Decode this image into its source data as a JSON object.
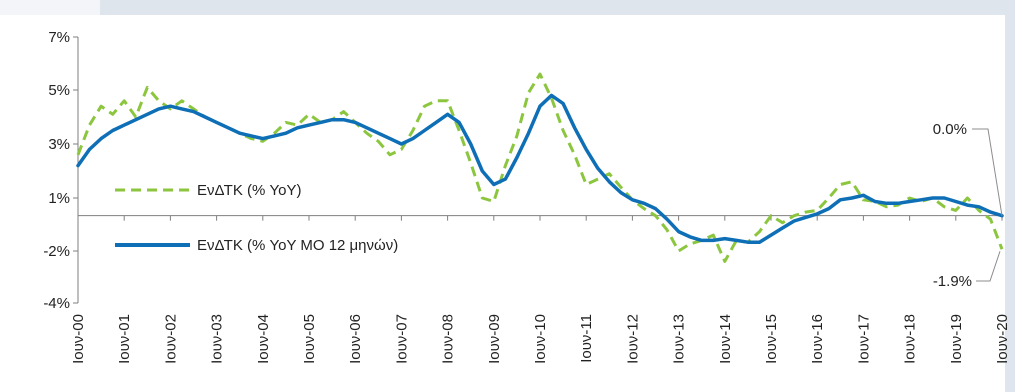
{
  "chart_data": {
    "type": "line",
    "title": "",
    "xlabel": "",
    "ylabel": "",
    "ylim": [
      -4,
      7
    ],
    "yticks": [
      7,
      5,
      3,
      1,
      -2,
      -4
    ],
    "ytick_labels": [
      "7%",
      "5%",
      "3%",
      "1%",
      "-2%",
      "-4%"
    ],
    "baseline": 0,
    "x_range": [
      2000.5,
      2020.5
    ],
    "x_ticks": [
      {
        "x": 2000.5,
        "label": "Ιουν-00"
      },
      {
        "x": 2001.5,
        "label": "Ιουν-01"
      },
      {
        "x": 2002.5,
        "label": "Ιουν-02"
      },
      {
        "x": 2003.5,
        "label": "Ιουν-03"
      },
      {
        "x": 2004.5,
        "label": "Ιουν-04"
      },
      {
        "x": 2005.5,
        "label": "Ιουν-05"
      },
      {
        "x": 2006.5,
        "label": "Ιουν-06"
      },
      {
        "x": 2007.5,
        "label": "Ιουν-07"
      },
      {
        "x": 2008.5,
        "label": "Ιουν-08"
      },
      {
        "x": 2009.5,
        "label": "Ιουν-09"
      },
      {
        "x": 2010.5,
        "label": "Ιουν-10"
      },
      {
        "x": 2011.5,
        "label": "Ιουν-11"
      },
      {
        "x": 2012.5,
        "label": "Ιουν-12"
      },
      {
        "x": 2013.5,
        "label": "Ιουν-13"
      },
      {
        "x": 2014.5,
        "label": "Ιουν-14"
      },
      {
        "x": 2015.5,
        "label": "Ιουν-15"
      },
      {
        "x": 2016.5,
        "label": "Ιουν-16"
      },
      {
        "x": 2017.5,
        "label": "Ιουν-17"
      },
      {
        "x": 2018.5,
        "label": "Ιουν-18"
      },
      {
        "x": 2019.5,
        "label": "Ιουν-19"
      },
      {
        "x": 2020.5,
        "label": "Ιουν-20"
      }
    ],
    "grid": false,
    "legend_position": "left",
    "series": [
      {
        "name": "ΕνΔΤΚ (% YoY)",
        "color": "#8cc63f",
        "style": "dashed",
        "points": [
          [
            2000.5,
            2.6
          ],
          [
            2000.75,
            3.7
          ],
          [
            2001.0,
            4.4
          ],
          [
            2001.25,
            4.1
          ],
          [
            2001.5,
            4.6
          ],
          [
            2001.75,
            4.0
          ],
          [
            2002.0,
            5.1
          ],
          [
            2002.25,
            4.6
          ],
          [
            2002.5,
            4.3
          ],
          [
            2002.75,
            4.6
          ],
          [
            2003.0,
            4.3
          ],
          [
            2003.25,
            4.0
          ],
          [
            2003.5,
            3.8
          ],
          [
            2003.75,
            3.6
          ],
          [
            2004.0,
            3.4
          ],
          [
            2004.25,
            3.2
          ],
          [
            2004.5,
            3.1
          ],
          [
            2004.75,
            3.4
          ],
          [
            2005.0,
            3.8
          ],
          [
            2005.25,
            3.7
          ],
          [
            2005.5,
            4.1
          ],
          [
            2005.75,
            3.8
          ],
          [
            2006.0,
            3.9
          ],
          [
            2006.25,
            4.2
          ],
          [
            2006.5,
            3.8
          ],
          [
            2006.75,
            3.4
          ],
          [
            2007.0,
            3.1
          ],
          [
            2007.25,
            2.6
          ],
          [
            2007.5,
            2.8
          ],
          [
            2007.75,
            3.5
          ],
          [
            2008.0,
            4.4
          ],
          [
            2008.25,
            4.6
          ],
          [
            2008.5,
            4.6
          ],
          [
            2008.75,
            3.5
          ],
          [
            2009.0,
            2.3
          ],
          [
            2009.25,
            1.0
          ],
          [
            2009.5,
            0.8
          ],
          [
            2009.75,
            2.2
          ],
          [
            2010.0,
            3.3
          ],
          [
            2010.25,
            4.9
          ],
          [
            2010.5,
            5.6
          ],
          [
            2010.75,
            4.7
          ],
          [
            2011.0,
            3.5
          ],
          [
            2011.25,
            2.6
          ],
          [
            2011.5,
            1.5
          ],
          [
            2011.75,
            1.7
          ],
          [
            2012.0,
            1.9
          ],
          [
            2012.25,
            1.4
          ],
          [
            2012.5,
            0.9
          ],
          [
            2012.75,
            0.4
          ],
          [
            2013.0,
            0.0
          ],
          [
            2013.25,
            -0.8
          ],
          [
            2013.5,
            -2.0
          ],
          [
            2013.75,
            -1.6
          ],
          [
            2014.0,
            -1.4
          ],
          [
            2014.25,
            -1.1
          ],
          [
            2014.5,
            -2.4
          ],
          [
            2014.75,
            -1.4
          ],
          [
            2015.0,
            -1.5
          ],
          [
            2015.25,
            -0.9
          ],
          [
            2015.5,
            0.0
          ],
          [
            2015.75,
            -0.4
          ],
          [
            2016.0,
            0.0
          ],
          [
            2016.25,
            0.2
          ],
          [
            2016.5,
            0.3
          ],
          [
            2016.75,
            1.0
          ],
          [
            2017.0,
            1.5
          ],
          [
            2017.25,
            1.6
          ],
          [
            2017.5,
            0.9
          ],
          [
            2017.75,
            0.8
          ],
          [
            2018.0,
            0.5
          ],
          [
            2018.25,
            0.6
          ],
          [
            2018.5,
            1.0
          ],
          [
            2018.75,
            0.8
          ],
          [
            2019.0,
            1.0
          ],
          [
            2019.25,
            0.5
          ],
          [
            2019.5,
            0.3
          ],
          [
            2019.75,
            1.0
          ],
          [
            2020.0,
            0.3
          ],
          [
            2020.25,
            -0.2
          ],
          [
            2020.5,
            -1.9
          ]
        ]
      },
      {
        "name": "ΕνΔΤΚ (% YoY ΜΟ 12 μηνών)",
        "color": "#0e6fb6",
        "style": "solid",
        "points": [
          [
            2000.5,
            2.2
          ],
          [
            2000.75,
            2.8
          ],
          [
            2001.0,
            3.2
          ],
          [
            2001.25,
            3.5
          ],
          [
            2001.5,
            3.7
          ],
          [
            2001.75,
            3.9
          ],
          [
            2002.0,
            4.1
          ],
          [
            2002.25,
            4.3
          ],
          [
            2002.5,
            4.4
          ],
          [
            2002.75,
            4.3
          ],
          [
            2003.0,
            4.2
          ],
          [
            2003.25,
            4.0
          ],
          [
            2003.5,
            3.8
          ],
          [
            2003.75,
            3.6
          ],
          [
            2004.0,
            3.4
          ],
          [
            2004.25,
            3.3
          ],
          [
            2004.5,
            3.2
          ],
          [
            2004.75,
            3.3
          ],
          [
            2005.0,
            3.4
          ],
          [
            2005.25,
            3.6
          ],
          [
            2005.5,
            3.7
          ],
          [
            2005.75,
            3.8
          ],
          [
            2006.0,
            3.9
          ],
          [
            2006.25,
            3.9
          ],
          [
            2006.5,
            3.8
          ],
          [
            2006.75,
            3.6
          ],
          [
            2007.0,
            3.4
          ],
          [
            2007.25,
            3.2
          ],
          [
            2007.5,
            3.0
          ],
          [
            2007.75,
            3.2
          ],
          [
            2008.0,
            3.5
          ],
          [
            2008.25,
            3.8
          ],
          [
            2008.5,
            4.1
          ],
          [
            2008.75,
            3.8
          ],
          [
            2009.0,
            3.0
          ],
          [
            2009.25,
            2.0
          ],
          [
            2009.5,
            1.5
          ],
          [
            2009.75,
            1.7
          ],
          [
            2010.0,
            2.5
          ],
          [
            2010.25,
            3.4
          ],
          [
            2010.5,
            4.4
          ],
          [
            2010.75,
            4.8
          ],
          [
            2011.0,
            4.5
          ],
          [
            2011.25,
            3.6
          ],
          [
            2011.5,
            2.8
          ],
          [
            2011.75,
            2.1
          ],
          [
            2012.0,
            1.6
          ],
          [
            2012.25,
            1.2
          ],
          [
            2012.5,
            0.9
          ],
          [
            2012.75,
            0.7
          ],
          [
            2013.0,
            0.4
          ],
          [
            2013.25,
            -0.2
          ],
          [
            2013.5,
            -0.9
          ],
          [
            2013.75,
            -1.2
          ],
          [
            2014.0,
            -1.4
          ],
          [
            2014.25,
            -1.4
          ],
          [
            2014.5,
            -1.3
          ],
          [
            2014.75,
            -1.4
          ],
          [
            2015.0,
            -1.5
          ],
          [
            2015.25,
            -1.5
          ],
          [
            2015.5,
            -1.1
          ],
          [
            2015.75,
            -0.7
          ],
          [
            2016.0,
            -0.3
          ],
          [
            2016.25,
            -0.1
          ],
          [
            2016.5,
            0.1
          ],
          [
            2016.75,
            0.4
          ],
          [
            2017.0,
            0.9
          ],
          [
            2017.25,
            1.0
          ],
          [
            2017.5,
            1.1
          ],
          [
            2017.75,
            0.8
          ],
          [
            2018.0,
            0.7
          ],
          [
            2018.25,
            0.7
          ],
          [
            2018.5,
            0.8
          ],
          [
            2018.75,
            0.9
          ],
          [
            2019.0,
            1.0
          ],
          [
            2019.25,
            1.0
          ],
          [
            2019.5,
            0.8
          ],
          [
            2019.75,
            0.6
          ],
          [
            2020.0,
            0.5
          ],
          [
            2020.25,
            0.2
          ],
          [
            2020.5,
            0.0
          ]
        ]
      }
    ],
    "annotations": [
      {
        "text": "0.0%",
        "x": 2020.5,
        "y": 0.0,
        "placement": "above-left"
      },
      {
        "text": "-1.9%",
        "x": 2020.5,
        "y": -1.9,
        "placement": "below-left"
      }
    ]
  }
}
